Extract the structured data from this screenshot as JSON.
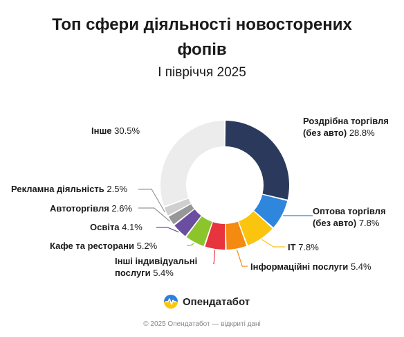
{
  "title_line1": "Топ сфери діяльності новосторених",
  "title_line2": "фопів",
  "subtitle": "І півріччя 2025",
  "logo_text": "Опендатабот",
  "footer": "© 2025 Опендатабот — відкриті дані",
  "chart_data": {
    "type": "pie",
    "donut": true,
    "title": "Топ сфери діяльності новосторених фопів",
    "subtitle": "І півріччя 2025",
    "slices": [
      {
        "label": "Роздрібна торгівля (без авто)",
        "value": 28.8,
        "display": "28.8%",
        "color": "#2b3a5c"
      },
      {
        "label": "Оптова торгівля (без авто)",
        "value": 7.8,
        "display": "7.8%",
        "color": "#2f86dd"
      },
      {
        "label": "IT",
        "value": 7.8,
        "display": "7.8%",
        "color": "#fbc40f"
      },
      {
        "label": "Інформаційні послуги",
        "value": 5.4,
        "display": "5.4%",
        "color": "#f48a10"
      },
      {
        "label": "Інші індивідуальні послуги",
        "value": 5.4,
        "display": "5.4%",
        "color": "#e8343e"
      },
      {
        "label": "Кафе та ресторани",
        "value": 5.2,
        "display": "5.2%",
        "color": "#8cc42c"
      },
      {
        "label": "Освіта",
        "value": 4.1,
        "display": "4.1%",
        "color": "#6b4ea0"
      },
      {
        "label": "Автоторгівля",
        "value": 2.6,
        "display": "2.6%",
        "color": "#979797"
      },
      {
        "label": "Рекламна діяльність",
        "value": 2.5,
        "display": "2.5%",
        "color": "#cfcfcf"
      },
      {
        "label": "Інше",
        "value": 30.5,
        "display": "30.5%",
        "color": "#ececec"
      }
    ]
  }
}
